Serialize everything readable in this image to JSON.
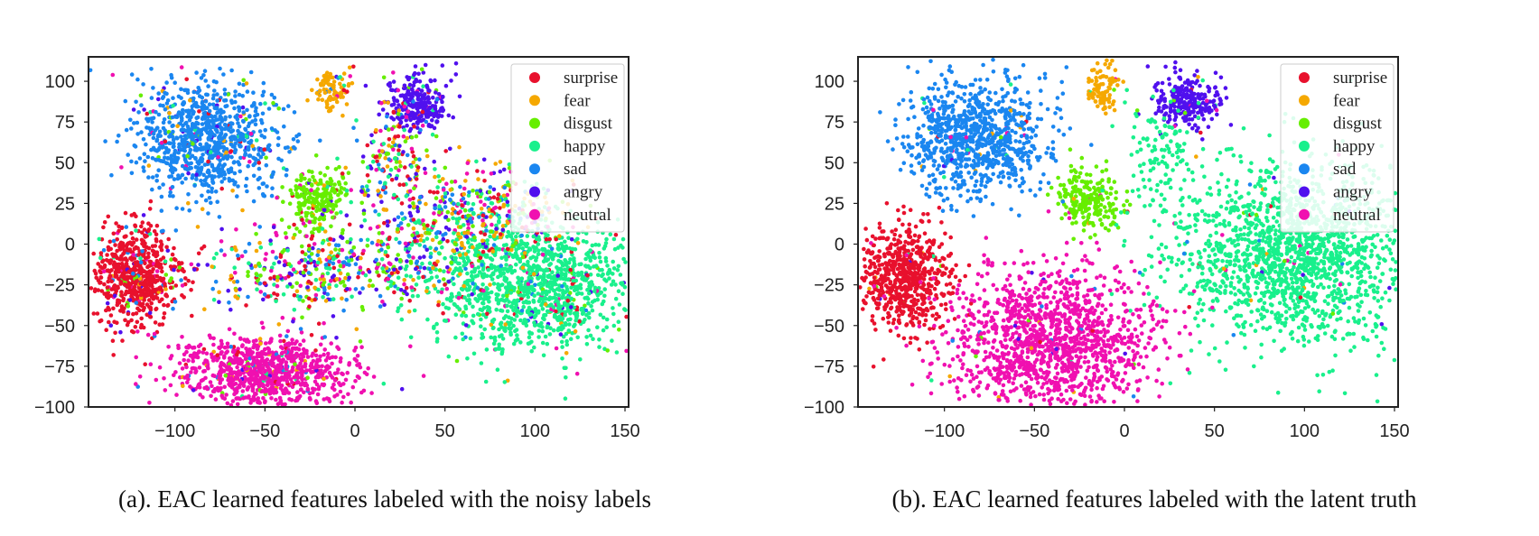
{
  "categories": [
    "surprise",
    "fear",
    "disgust",
    "happy",
    "sad",
    "angry",
    "neutral"
  ],
  "colors": {
    "surprise": "#e8112d",
    "fear": "#f5a800",
    "disgust": "#66ee00",
    "happy": "#19f08c",
    "sad": "#1a86f0",
    "angry": "#5010ee",
    "neutral": "#f010b0"
  },
  "chart_data": [
    {
      "type": "scatter",
      "caption": "(a). EAC learned features labeled with the noisy labels",
      "xlim": [
        -148,
        152
      ],
      "ylim": [
        -100,
        115
      ],
      "xticks": [
        -100,
        -50,
        0,
        50,
        100,
        150
      ],
      "yticks": [
        100,
        75,
        50,
        25,
        0,
        -25,
        -50,
        -75,
        -100
      ],
      "xtick_labels": [
        "−100",
        "−50",
        "0",
        "50",
        "100",
        "150"
      ],
      "ytick_labels": [
        "100",
        "75",
        "50",
        "25",
        "0",
        "−25",
        "−50",
        "−75",
        "−100"
      ],
      "legend": [
        "surprise",
        "fear",
        "disgust",
        "happy",
        "sad",
        "angry",
        "neutral"
      ],
      "legend_position": "top-right",
      "labeling": "noisy",
      "clusters": [
        {
          "label": "surprise",
          "center": [
            -122,
            -20
          ],
          "spread": [
            12,
            16
          ],
          "count": 650
        },
        {
          "label": "fear",
          "center": [
            -12,
            95
          ],
          "spread": [
            5,
            7
          ],
          "count": 90
        },
        {
          "label": "disgust",
          "center": [
            -20,
            28
          ],
          "spread": [
            9,
            10
          ],
          "count": 230
        },
        {
          "label": "happy",
          "center": [
            100,
            -25
          ],
          "spread": [
            30,
            20
          ],
          "count": 1300
        },
        {
          "label": "sad",
          "center": [
            -82,
            65
          ],
          "spread": [
            20,
            18
          ],
          "count": 900
        },
        {
          "label": "angry",
          "center": [
            35,
            87
          ],
          "spread": [
            9,
            9
          ],
          "count": 260
        },
        {
          "label": "neutral",
          "center": [
            -50,
            -78
          ],
          "spread": [
            25,
            11
          ],
          "count": 950
        },
        {
          "label": "mixed",
          "center": [
            -15,
            -15
          ],
          "spread": [
            40,
            14
          ],
          "count": 500
        },
        {
          "label": "mixed",
          "center": [
            60,
            20
          ],
          "spread": [
            28,
            15
          ],
          "count": 450
        },
        {
          "label": "mixed",
          "center": [
            20,
            55
          ],
          "spread": [
            10,
            18
          ],
          "count": 150
        }
      ]
    },
    {
      "type": "scatter",
      "caption": "(b). EAC learned features labeled with the latent truth",
      "xlim": [
        -148,
        152
      ],
      "ylim": [
        -100,
        115
      ],
      "xticks": [
        -100,
        -50,
        0,
        50,
        100,
        150
      ],
      "yticks": [
        100,
        75,
        50,
        25,
        0,
        -25,
        -50,
        -75,
        -100
      ],
      "xtick_labels": [
        "−100",
        "−50",
        "0",
        "50",
        "100",
        "150"
      ],
      "ytick_labels": [
        "100",
        "75",
        "50",
        "25",
        "0",
        "−25",
        "−50",
        "−75",
        "−100"
      ],
      "legend": [
        "surprise",
        "fear",
        "disgust",
        "happy",
        "sad",
        "angry",
        "neutral"
      ],
      "legend_position": "top-right",
      "labeling": "latent",
      "clusters": [
        {
          "label": "surprise",
          "center": [
            -122,
            -20
          ],
          "spread": [
            12,
            16
          ],
          "count": 650
        },
        {
          "label": "fear",
          "center": [
            -12,
            95
          ],
          "spread": [
            5,
            7
          ],
          "count": 90
        },
        {
          "label": "disgust",
          "center": [
            -20,
            28
          ],
          "spread": [
            9,
            10
          ],
          "count": 230
        },
        {
          "label": "happy",
          "center": [
            95,
            -5
          ],
          "spread": [
            35,
            28
          ],
          "count": 1700
        },
        {
          "label": "sad",
          "center": [
            -82,
            65
          ],
          "spread": [
            20,
            18
          ],
          "count": 900
        },
        {
          "label": "angry",
          "center": [
            35,
            87
          ],
          "spread": [
            9,
            9
          ],
          "count": 260
        },
        {
          "label": "neutral",
          "center": [
            -40,
            -60
          ],
          "spread": [
            28,
            22
          ],
          "count": 1400
        },
        {
          "label": "happy",
          "center": [
            20,
            55
          ],
          "spread": [
            10,
            18
          ],
          "count": 120
        }
      ]
    }
  ]
}
